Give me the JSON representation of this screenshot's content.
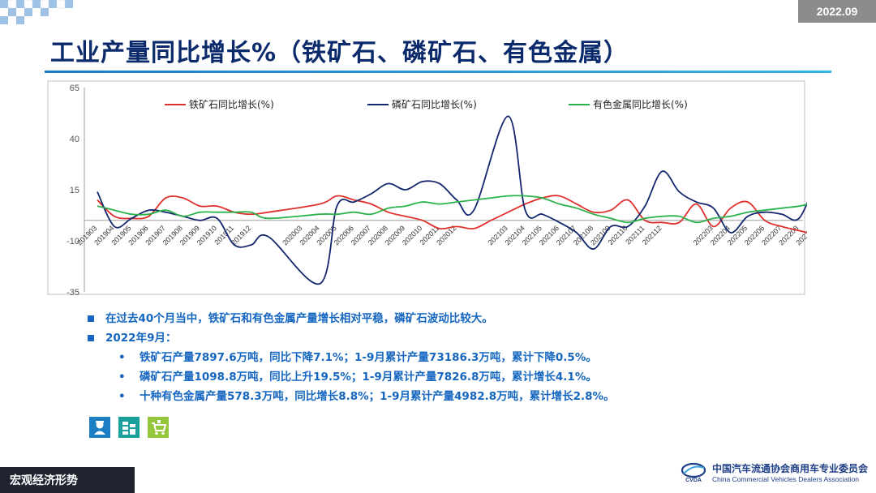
{
  "header": {
    "date": "2022.09",
    "title": "工业产量同比增长%（铁矿石、磷矿石、有色金属）"
  },
  "chart_data": {
    "type": "line",
    "title": "",
    "xlabel": "",
    "ylabel": "",
    "ylim": [
      -35,
      65
    ],
    "yticks": [
      65,
      40,
      15,
      -10,
      -35
    ],
    "grid": false,
    "legend_position": "top",
    "x": [
      "201903",
      "201904",
      "201905",
      "201906",
      "201907",
      "201908",
      "201909",
      "201910",
      "201911",
      "201912",
      "202001",
      "202002",
      "202003",
      "202004",
      "202005",
      "202006",
      "202007",
      "202008",
      "202009",
      "202010",
      "202011",
      "202012",
      "202101",
      "202102",
      "202103",
      "202104",
      "202105",
      "202106",
      "202107",
      "202108",
      "202109",
      "202110",
      "202111",
      "202112",
      "202201",
      "202202",
      "202203",
      "202204",
      "202205",
      "202206",
      "202207",
      "202208",
      "202209"
    ],
    "xtick_labels": [
      "201903",
      "201904",
      "201905",
      "201906",
      "201907",
      "201908",
      "201909",
      "201910",
      "201911",
      "201912",
      "202003",
      "202004",
      "202005",
      "202006",
      "202007",
      "202008",
      "202009",
      "202010",
      "202011",
      "202012",
      "202103",
      "202104",
      "202105",
      "202106",
      "202107",
      "202108",
      "202109",
      "202110",
      "202111",
      "202112",
      "202203",
      "202204",
      "202205",
      "202206",
      "202207",
      "202208",
      "202209"
    ],
    "series": [
      {
        "name": "铁矿石同比增长(%)",
        "color": "#e0302b",
        "values": [
          10,
          2,
          1,
          2,
          11,
          11,
          7,
          7,
          4,
          3,
          4,
          null,
          null,
          8,
          12,
          10,
          8,
          4,
          2,
          0,
          -4,
          -3,
          -4,
          0,
          4,
          8,
          11,
          12,
          8,
          4,
          5,
          10,
          0,
          -1,
          -1,
          8,
          -3,
          6,
          9,
          0,
          -3,
          -5,
          -7.1
        ]
      },
      {
        "name": "磷矿石同比增长(%)",
        "color": "#13266e",
        "values": [
          14,
          -3,
          1,
          5,
          4,
          2,
          0,
          1,
          -12,
          -12,
          -8,
          null,
          null,
          -31,
          7,
          9,
          13,
          18,
          15,
          19,
          18,
          10,
          5,
          null,
          51,
          5,
          3,
          -1,
          -6,
          -14,
          -3,
          -3,
          7,
          24,
          14,
          9,
          6,
          -6,
          2,
          4,
          3,
          1,
          19.5
        ]
      },
      {
        "name": "有色金属同比增长(%)",
        "color": "#2ab24a",
        "values": [
          7,
          5,
          3,
          3,
          5,
          2,
          4,
          4,
          4,
          4,
          1,
          null,
          null,
          3,
          3,
          4,
          3,
          6,
          7,
          9,
          8,
          9,
          10,
          11,
          12,
          12,
          11,
          8,
          6,
          3,
          1,
          -1,
          1,
          2,
          2,
          -1,
          1,
          2,
          4,
          5,
          6,
          7,
          8.8
        ]
      }
    ]
  },
  "bullets": {
    "b1": "在过去40个月当中，铁矿石和有色金属产量增长相对平稳，磷矿石波动比较大。",
    "b2": "2022年9月：",
    "s1": "铁矿石产量7897.6万吨，同比下降7.1%；1-9月累计产量73186.3万吨，累计下降0.5%。",
    "s2": "磷矿石产量1098.8万吨，同比上升19.5%；1-9月累计产量7826.8万吨，累计增长4.1%。",
    "s3": "十种有色金属产量578.3万吨，同比增长8.8%；1-9月累计产量4982.8万吨，累计增长2.8%。"
  },
  "footer": {
    "section": "宏观经济形势",
    "org_cn": "中国汽车流通协会商用车专业委员会",
    "org_en": "China Commercial Vehicles Dealers Association",
    "logo_mark": "CVDA"
  },
  "icons": [
    "worker-icon",
    "stack-icon",
    "cart-icon"
  ],
  "colors": {
    "title": "#0b2a6b",
    "accent": "#1566c0",
    "icon_bg": [
      "#1c7fc4",
      "#1aa09a",
      "#93c63c"
    ]
  }
}
